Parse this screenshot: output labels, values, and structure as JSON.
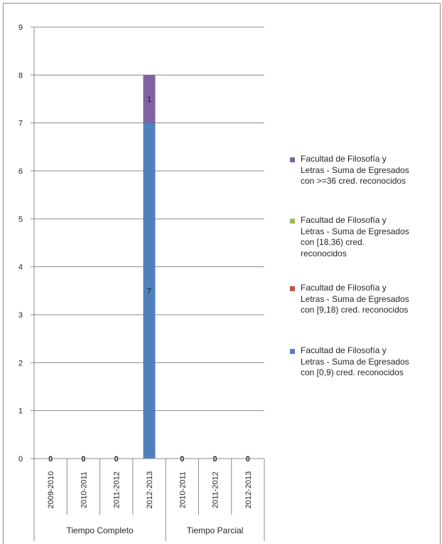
{
  "chart_data": {
    "type": "bar",
    "stacked": true,
    "title": "",
    "xlabel": "",
    "ylabel": "",
    "ylim": [
      0,
      9
    ],
    "yticks": [
      0,
      1,
      2,
      3,
      4,
      5,
      6,
      7,
      8,
      9
    ],
    "grid": true,
    "legend_position": "right",
    "groups": [
      {
        "name": "Tiempo Completo",
        "categories": [
          "2009-2010",
          "2010-2011",
          "2011-2012",
          "2012-2013"
        ]
      },
      {
        "name": "Tiempo Parcial",
        "categories": [
          "2010-2011",
          "2011-2012",
          "2012-2013"
        ]
      }
    ],
    "categories": [
      "2009-2010",
      "2010-2011",
      "2011-2012",
      "2012-2013",
      "2010-2011",
      "2011-2012",
      "2012-2013"
    ],
    "series": [
      {
        "name": "Facultad de Filosofía y Letras - Suma de Egresados con [0,9) cred. reconocidos",
        "color": "#4f81bd",
        "values": [
          0,
          0,
          0,
          7,
          0,
          0,
          0
        ]
      },
      {
        "name": "Facultad de Filosofía y Letras - Suma de Egresados con [9,18) cred. reconocidos",
        "color": "#c0504d",
        "values": [
          0,
          0,
          0,
          0,
          0,
          0,
          0
        ]
      },
      {
        "name": "Facultad de Filosofía y Letras - Suma de Egresados con [18,36) cred. reconocidos",
        "color": "#9bbb59",
        "values": [
          0,
          0,
          0,
          0,
          0,
          0,
          0
        ]
      },
      {
        "name": "Facultad de Filosofía y Letras - Suma de Egresados con >=36 cred. reconocidos",
        "color": "#8064a2",
        "values": [
          0,
          0,
          0,
          1,
          0,
          0,
          0
        ]
      }
    ],
    "data_labels": [
      {
        "category_index": 0,
        "text": "0"
      },
      {
        "category_index": 1,
        "text": "0"
      },
      {
        "category_index": 2,
        "text": "0"
      },
      {
        "category_index": 3,
        "series_index": 0,
        "text": "7"
      },
      {
        "category_index": 3,
        "series_index": 3,
        "text": "1"
      },
      {
        "category_index": 4,
        "text": "0"
      },
      {
        "category_index": 5,
        "text": "0"
      },
      {
        "category_index": 6,
        "text": "0"
      }
    ]
  },
  "legend": {
    "items": [
      {
        "color": "#8064a2",
        "lines": [
          "Facultad de Filosofía y",
          "Letras - Suma de Egresados",
          "con >=36 cred. reconocidos"
        ]
      },
      {
        "color": "#9bbb59",
        "lines": [
          "Facultad de Filosofía y",
          "Letras - Suma de Egresados",
          "con [18,36) cred.",
          "reconocidos"
        ]
      },
      {
        "color": "#c0504d",
        "lines": [
          "Facultad de Filosofía y",
          "Letras - Suma de Egresados",
          "con [9,18) cred. reconocidos"
        ]
      },
      {
        "color": "#4f81bd",
        "lines": [
          "Facultad de Filosofía y",
          "Letras - Suma de Egresados",
          "con [0,9) cred. reconocidos"
        ]
      }
    ]
  }
}
